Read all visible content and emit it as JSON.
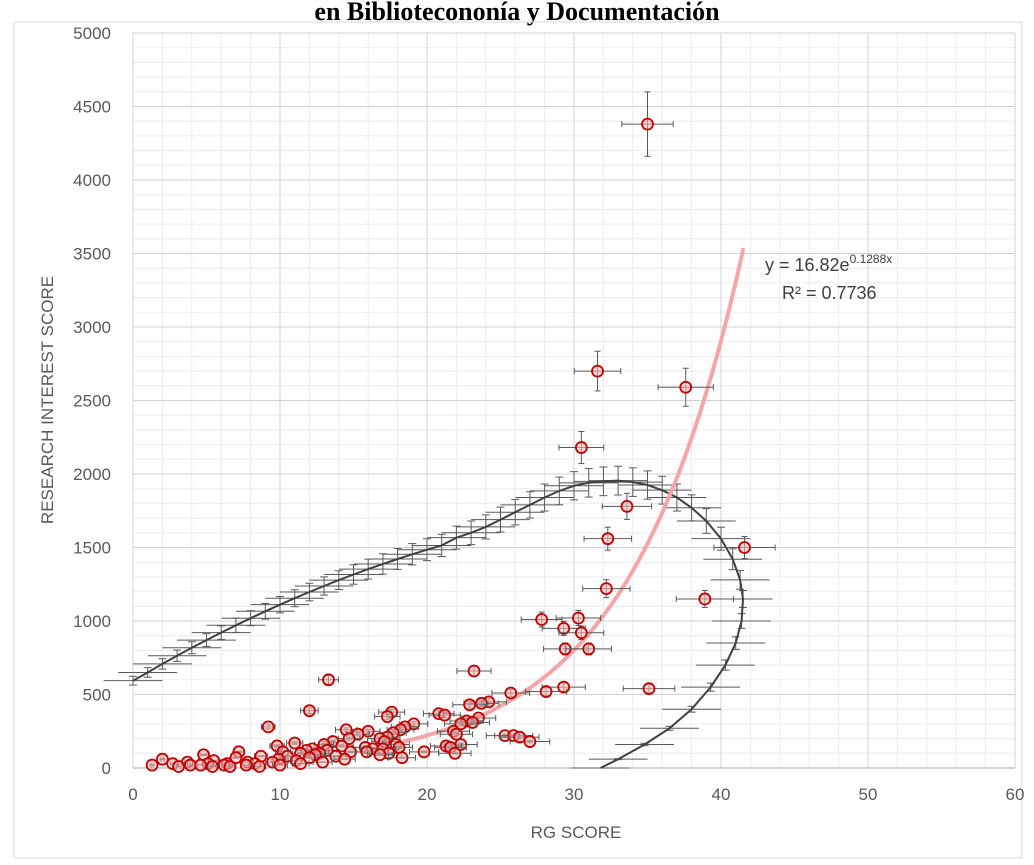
{
  "chart_data": {
    "type": "scatter",
    "title": "en Bibliotecononía y Documentación",
    "xlabel": "RG SCORE",
    "ylabel": "RESEARCH INTEREST SCORE",
    "xlim": [
      0,
      60
    ],
    "ylim": [
      0,
      5000
    ],
    "x_ticks": [
      "0",
      "10",
      "20",
      "30",
      "40",
      "50",
      "60"
    ],
    "y_ticks": [
      "0",
      "500",
      "1000",
      "1500",
      "2000",
      "2500",
      "3000",
      "3500",
      "4000",
      "4500",
      "5000"
    ],
    "grid": true,
    "minor_grid": true,
    "colors": {
      "points": "#c00000",
      "trendline": "#f4a6a6",
      "error_bars": "#595959",
      "grid_major": "#d0d0d0",
      "grid_minor": "#ececec"
    },
    "trendline": {
      "type": "exponential",
      "equation_prefix": "y = 16.82e",
      "equation_exponent": "0.1288x",
      "r_squared": "R² = 0.7736",
      "a": 16.82,
      "b": 0.1288,
      "x_range": [
        18,
        41.5
      ]
    },
    "series": [
      {
        "points": [
          [
            35.0,
            4380
          ],
          [
            31.6,
            2700
          ],
          [
            37.6,
            2590
          ],
          [
            30.5,
            2180
          ],
          [
            33.6,
            1780
          ],
          [
            32.3,
            1560
          ],
          [
            41.6,
            1500
          ],
          [
            32.2,
            1220
          ],
          [
            38.9,
            1150
          ],
          [
            30.3,
            1020
          ],
          [
            27.8,
            1010
          ],
          [
            29.3,
            950
          ],
          [
            30.5,
            920
          ],
          [
            29.4,
            810
          ],
          [
            31.0,
            810
          ],
          [
            23.2,
            660
          ],
          [
            13.3,
            600
          ],
          [
            29.3,
            550
          ],
          [
            35.1,
            540
          ],
          [
            28.1,
            520
          ],
          [
            25.7,
            510
          ],
          [
            24.2,
            450
          ],
          [
            23.7,
            440
          ],
          [
            22.9,
            430
          ],
          [
            12.0,
            390
          ],
          [
            17.6,
            380
          ],
          [
            20.8,
            370
          ],
          [
            21.2,
            360
          ],
          [
            17.3,
            350
          ],
          [
            23.5,
            340
          ],
          [
            22.7,
            320
          ],
          [
            23.1,
            310
          ],
          [
            22.3,
            300
          ],
          [
            19.1,
            300
          ],
          [
            9.2,
            280
          ],
          [
            18.5,
            280
          ],
          [
            18.2,
            260
          ],
          [
            14.5,
            260
          ],
          [
            21.8,
            250
          ],
          [
            16.0,
            250
          ],
          [
            17.7,
            240
          ],
          [
            22.0,
            230
          ],
          [
            15.3,
            230
          ],
          [
            25.3,
            220
          ],
          [
            25.9,
            220
          ],
          [
            26.3,
            210
          ],
          [
            17.3,
            210
          ],
          [
            16.8,
            200
          ],
          [
            14.7,
            200
          ],
          [
            27.0,
            180
          ],
          [
            13.6,
            180
          ],
          [
            17.1,
            180
          ],
          [
            11.0,
            170
          ],
          [
            13.0,
            160
          ],
          [
            22.3,
            160
          ],
          [
            17.9,
            160
          ],
          [
            21.3,
            150
          ],
          [
            9.8,
            150
          ],
          [
            14.2,
            150
          ],
          [
            15.8,
            140
          ],
          [
            21.6,
            140
          ],
          [
            18.1,
            140
          ],
          [
            16.3,
            130
          ],
          [
            12.2,
            130
          ],
          [
            17.0,
            130
          ],
          [
            11.8,
            120
          ],
          [
            13.2,
            120
          ],
          [
            14.8,
            110
          ],
          [
            7.2,
            110
          ],
          [
            10.2,
            110
          ],
          [
            15.9,
            110
          ],
          [
            19.8,
            110
          ],
          [
            12.7,
            100
          ],
          [
            17.4,
            100
          ],
          [
            11.4,
            100
          ],
          [
            21.9,
            100
          ],
          [
            4.8,
            90
          ],
          [
            16.8,
            90
          ],
          [
            12.4,
            90
          ],
          [
            13.8,
            80
          ],
          [
            8.7,
            80
          ],
          [
            10.5,
            80
          ],
          [
            18.3,
            70
          ],
          [
            7.0,
            70
          ],
          [
            2.0,
            60
          ],
          [
            12.0,
            70
          ],
          [
            9.9,
            60
          ],
          [
            14.4,
            60
          ],
          [
            5.5,
            50
          ],
          [
            11.1,
            50
          ],
          [
            9.5,
            40
          ],
          [
            7.8,
            40
          ],
          [
            3.7,
            40
          ],
          [
            12.9,
            40
          ],
          [
            6.4,
            30
          ],
          [
            5.1,
            30
          ],
          [
            2.7,
            30
          ],
          [
            8.3,
            30
          ],
          [
            11.4,
            30
          ],
          [
            3.9,
            20
          ],
          [
            6.2,
            20
          ],
          [
            1.3,
            20
          ],
          [
            4.6,
            20
          ],
          [
            7.7,
            20
          ],
          [
            10.0,
            20
          ],
          [
            3.1,
            10
          ],
          [
            6.6,
            10
          ],
          [
            8.6,
            10
          ],
          [
            5.4,
            10
          ]
        ]
      },
      {
        "points": [
          [
            0.0,
            594
          ],
          [
            1.0,
            650
          ],
          [
            2.0,
            708
          ],
          [
            3.0,
            764
          ],
          [
            4.0,
            818
          ],
          [
            5.0,
            870
          ],
          [
            6.0,
            921
          ],
          [
            7.0,
            971
          ],
          [
            8.0,
            1019
          ],
          [
            9.0,
            1066
          ],
          [
            10.0,
            1111
          ],
          [
            11.0,
            1155
          ],
          [
            12.0,
            1197
          ],
          [
            13.0,
            1238
          ],
          [
            14.0,
            1278
          ],
          [
            15.0,
            1316
          ],
          [
            16.0,
            1353
          ],
          [
            17.0,
            1388
          ],
          [
            18.0,
            1422
          ],
          [
            19.0,
            1454
          ],
          [
            20.0,
            1485
          ],
          [
            21.0,
            1514
          ],
          [
            22.0,
            1567
          ],
          [
            23.0,
            1600
          ],
          [
            24.0,
            1640
          ],
          [
            25.0,
            1690
          ],
          [
            26.0,
            1740
          ],
          [
            27.0,
            1790
          ],
          [
            28.0,
            1840
          ],
          [
            29.0,
            1885
          ],
          [
            30.0,
            1920
          ],
          [
            31.0,
            1940
          ],
          [
            32.0,
            1950
          ],
          [
            33.0,
            1955
          ],
          [
            34.0,
            1945
          ],
          [
            35.0,
            1925
          ],
          [
            36.0,
            1890
          ],
          [
            37.0,
            1840
          ],
          [
            38.0,
            1770
          ],
          [
            39.0,
            1680
          ],
          [
            40.0,
            1560
          ],
          [
            40.8,
            1420
          ],
          [
            41.3,
            1280
          ],
          [
            41.5,
            1150
          ],
          [
            41.4,
            1000
          ],
          [
            41.0,
            850
          ],
          [
            40.3,
            700
          ],
          [
            39.3,
            550
          ],
          [
            38.0,
            400
          ],
          [
            36.5,
            270
          ],
          [
            34.8,
            160
          ],
          [
            33.0,
            60
          ],
          [
            31.8,
            0
          ]
        ]
      }
    ]
  }
}
